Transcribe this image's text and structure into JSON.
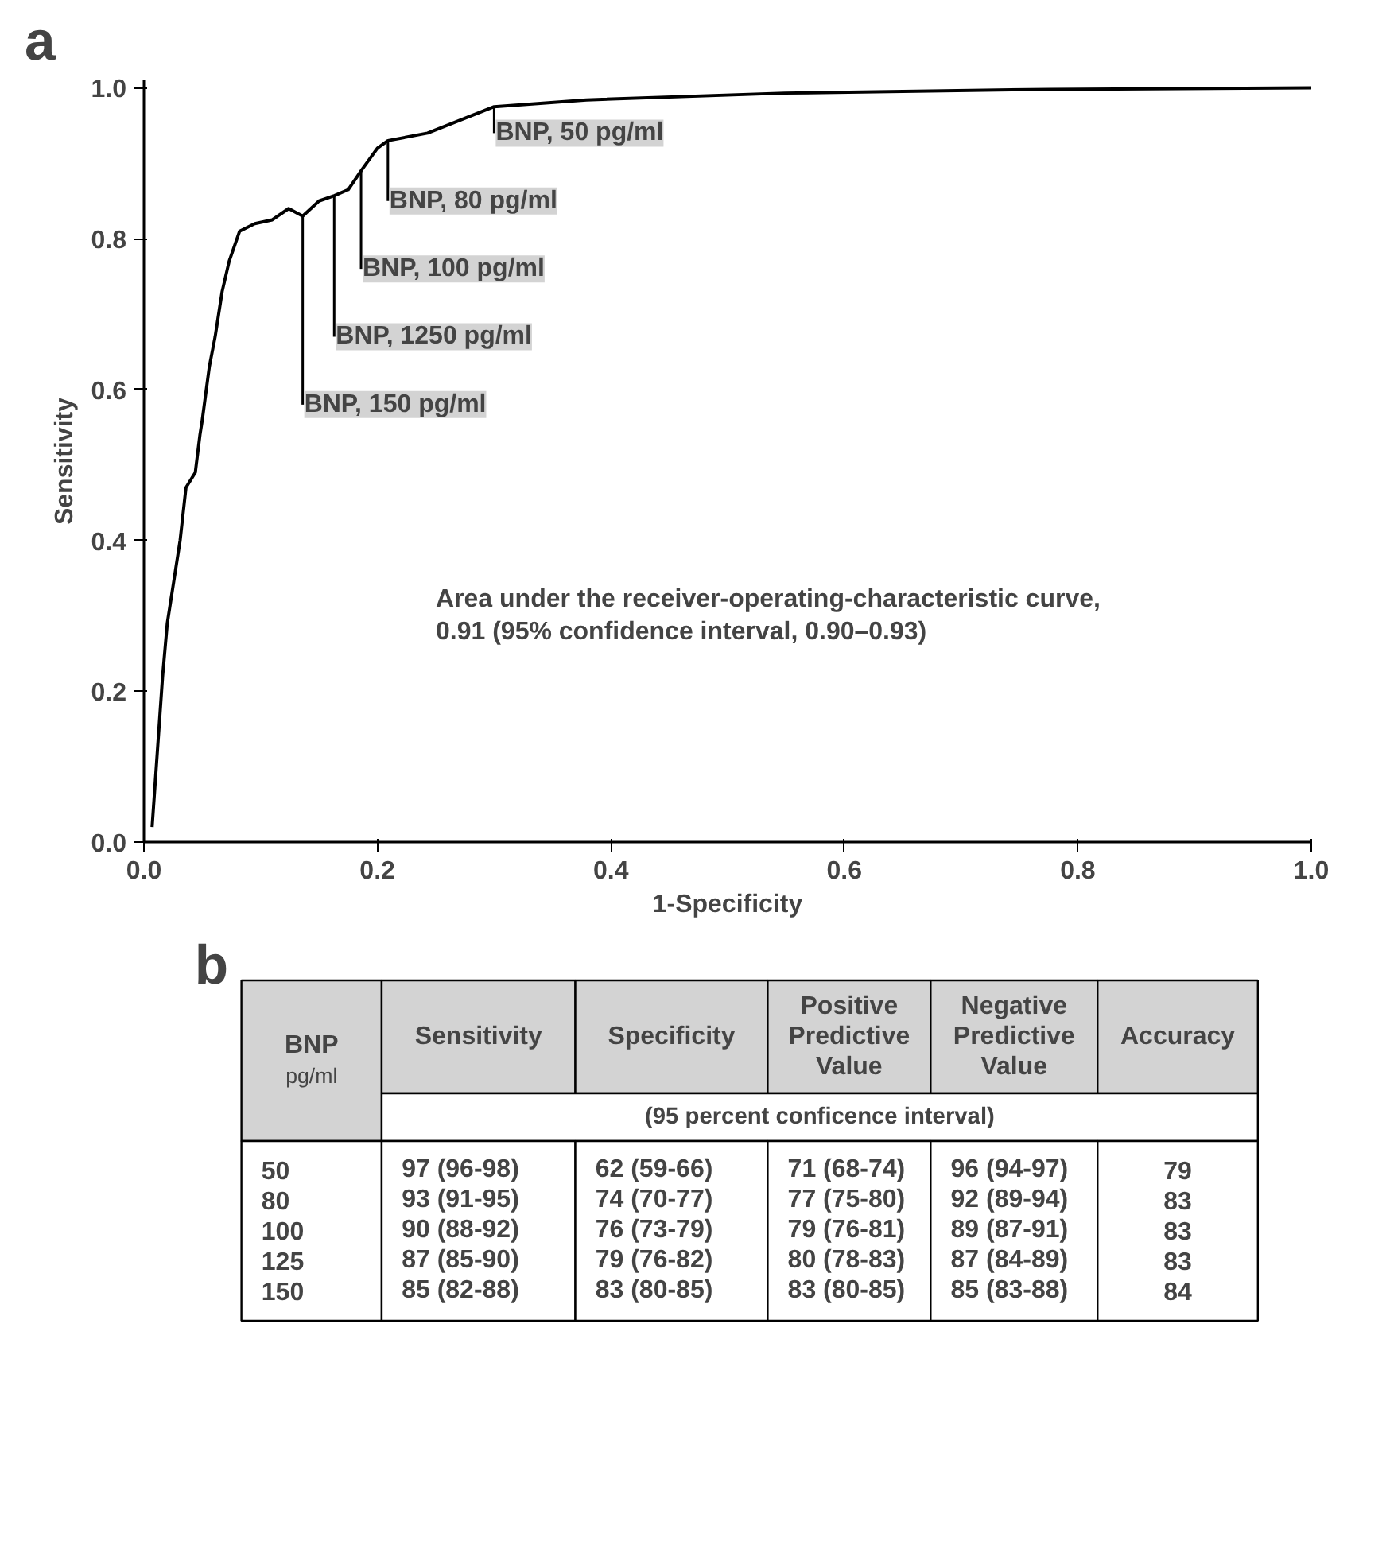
{
  "chart_data": [
    {
      "type": "line",
      "title": "a",
      "xlabel": "1-Specificity",
      "ylabel": "Sensitivity",
      "series": [
        {
          "color": "#000000",
          "x": [
            0.007,
            0.016,
            0.02,
            0.027,
            0.031,
            0.036,
            0.044,
            0.048,
            0.05,
            0.056,
            0.061,
            0.067,
            0.073,
            0.082,
            0.095,
            0.11,
            0.124,
            0.136,
            0.15,
            0.163,
            0.175,
            0.186,
            0.2,
            0.209,
            0.243,
            0.3,
            0.379,
            0.549,
            0.776,
            1.0
          ],
          "values": [
            0.02,
            0.22,
            0.29,
            0.36,
            0.4,
            0.47,
            0.49,
            0.54,
            0.56,
            0.63,
            0.67,
            0.73,
            0.77,
            0.81,
            0.82,
            0.825,
            0.84,
            0.83,
            0.85,
            0.857,
            0.865,
            0.89,
            0.92,
            0.93,
            0.94,
            0.975,
            0.984,
            0.993,
            0.998,
            1.0
          ]
        }
      ],
      "xlim": [
        0,
        1.0
      ],
      "ylim": [
        0,
        1.01
      ],
      "xticks": [
        {
          "value": 0,
          "label": "0.0"
        },
        0.2,
        0.4,
        0.6,
        0.8,
        {
          "value": 1,
          "label": "1.0"
        }
      ],
      "yticks": [
        {
          "value": 0,
          "label": "0.0"
        },
        0.2,
        0.4,
        0.6,
        0.8,
        {
          "value": 1,
          "label": "1.0"
        }
      ],
      "grid": false,
      "annotations": [
        {
          "text": "BNP, 150 pg/ml",
          "x": 0.136,
          "y": 0.83
        },
        {
          "text": "BNP, 1250 pg/ml",
          "x": 0.163,
          "y": 0.857
        },
        {
          "text": "BNP, 100 pg/ml",
          "x": 0.186,
          "y": 0.89
        },
        {
          "text": "BNP, 80 pg/ml",
          "x": 0.209,
          "y": 0.93
        },
        {
          "text": "BNP, 50 pg/ml",
          "x": 0.3,
          "y": 0.975
        },
        "Area under the receiver-operating-characteristic curve,\n0.91 (95% confidence interval, 0.90–0.93)"
      ]
    },
    {
      "type": "other",
      "title": "b",
      "categories": [
        "BNP pg/ml",
        "Sensitivity",
        "Specificity",
        "Positive Predictive Value",
        "Negative Predictive Value",
        "Accuracy"
      ],
      "subtitle": "(95 percent conficence interval)",
      "y_categories": [
        "50",
        "80",
        "100",
        "125",
        "150"
      ],
      "cell_labels": [
        [
          "97 (96-98)",
          "62 (59-66)",
          "71 (68-74)",
          "96 (94-97)",
          "79"
        ],
        [
          "93 (91-95)",
          "74 (70-77)",
          "77 (75-80)",
          "92 (89-94)",
          "83"
        ],
        [
          "90 (88-92)",
          "76 (73-79)",
          "79 (76-81)",
          "89 (87-91)",
          "83"
        ],
        [
          "87 (85-90)",
          "79 (76-82)",
          "80 (78-83)",
          "87 (84-89)",
          "83"
        ],
        [
          "85 (82-88)",
          "83 (80-85)",
          "83 (80-85)",
          "85 (83-88)",
          "84"
        ]
      ]
    }
  ]
}
